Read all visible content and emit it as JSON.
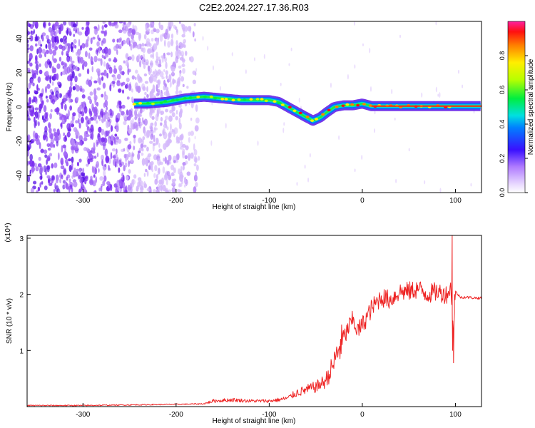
{
  "figure": {
    "title": "C2E2.2024.227.17.36.R03"
  },
  "chart_data": [
    {
      "type": "heatmap",
      "xlabel": "Height of straight line (km)",
      "ylabel": "Frequency (Hz)",
      "xlim": [
        -360,
        128
      ],
      "ylim": [
        -50,
        50
      ],
      "x_ticks": [
        -300,
        -200,
        -100,
        0,
        100
      ],
      "y_ticks": [
        -40,
        -20,
        0,
        20,
        40
      ],
      "colorbar": {
        "label": "Normalized spectral amplitude",
        "range": [
          0.0,
          1.0
        ],
        "ticks": [
          0.0,
          0.2,
          0.4,
          0.6,
          0.8
        ],
        "colormap": "rainbow (purple to red)"
      },
      "signal_ridge": {
        "x": [
          -245,
          -230,
          -210,
          -190,
          -170,
          -150,
          -130,
          -110,
          -100,
          -90,
          -80,
          -70,
          -60,
          -53,
          -45,
          -38,
          -30,
          -20,
          -10,
          0,
          10,
          30,
          60,
          90,
          128
        ],
        "y": [
          2,
          2,
          3,
          5,
          6,
          5,
          4,
          4,
          4,
          3,
          0,
          -3,
          -6,
          -8,
          -6,
          -3,
          0,
          1,
          1,
          2,
          0.5,
          0.5,
          0.5,
          0.5,
          0.5
        ]
      },
      "noise_region_x": [
        -360,
        -185
      ],
      "grid": false,
      "legend": "none"
    },
    {
      "type": "line",
      "xlabel": "Height of straight line (km)",
      "ylabel": "SNR (10 * v/v)",
      "y_multiplier": "(x10⁴)",
      "xlim": [
        -360,
        128
      ],
      "ylim": [
        0,
        3.05
      ],
      "x_ticks": [
        -300,
        -200,
        -100,
        0,
        100
      ],
      "y_ticks": [
        1,
        2,
        3
      ],
      "color": "#ee2222",
      "series": [
        {
          "x": [
            -360,
            -300,
            -250,
            -200,
            -170,
            -160,
            -140,
            -120,
            -100,
            -90,
            -80,
            -70,
            -60,
            -50,
            -40,
            -35,
            -30,
            -25,
            -20,
            -15,
            -10,
            -5,
            0,
            5,
            10,
            15,
            20,
            30,
            40,
            50,
            60,
            70,
            80,
            90,
            95,
            98,
            100,
            105,
            110,
            128
          ],
          "y": [
            0.02,
            0.02,
            0.03,
            0.04,
            0.05,
            0.1,
            0.12,
            0.1,
            0.1,
            0.12,
            0.15,
            0.25,
            0.3,
            0.35,
            0.45,
            0.6,
            0.8,
            1.05,
            1.2,
            1.4,
            1.55,
            1.35,
            1.45,
            1.6,
            1.75,
            1.85,
            1.95,
            1.9,
            2.05,
            2.05,
            2.1,
            2.0,
            2.05,
            2.0,
            2.1,
            1.3,
            2.05,
            1.95,
            1.95,
            1.93
          ]
        }
      ],
      "grid": false,
      "legend": "none"
    }
  ]
}
